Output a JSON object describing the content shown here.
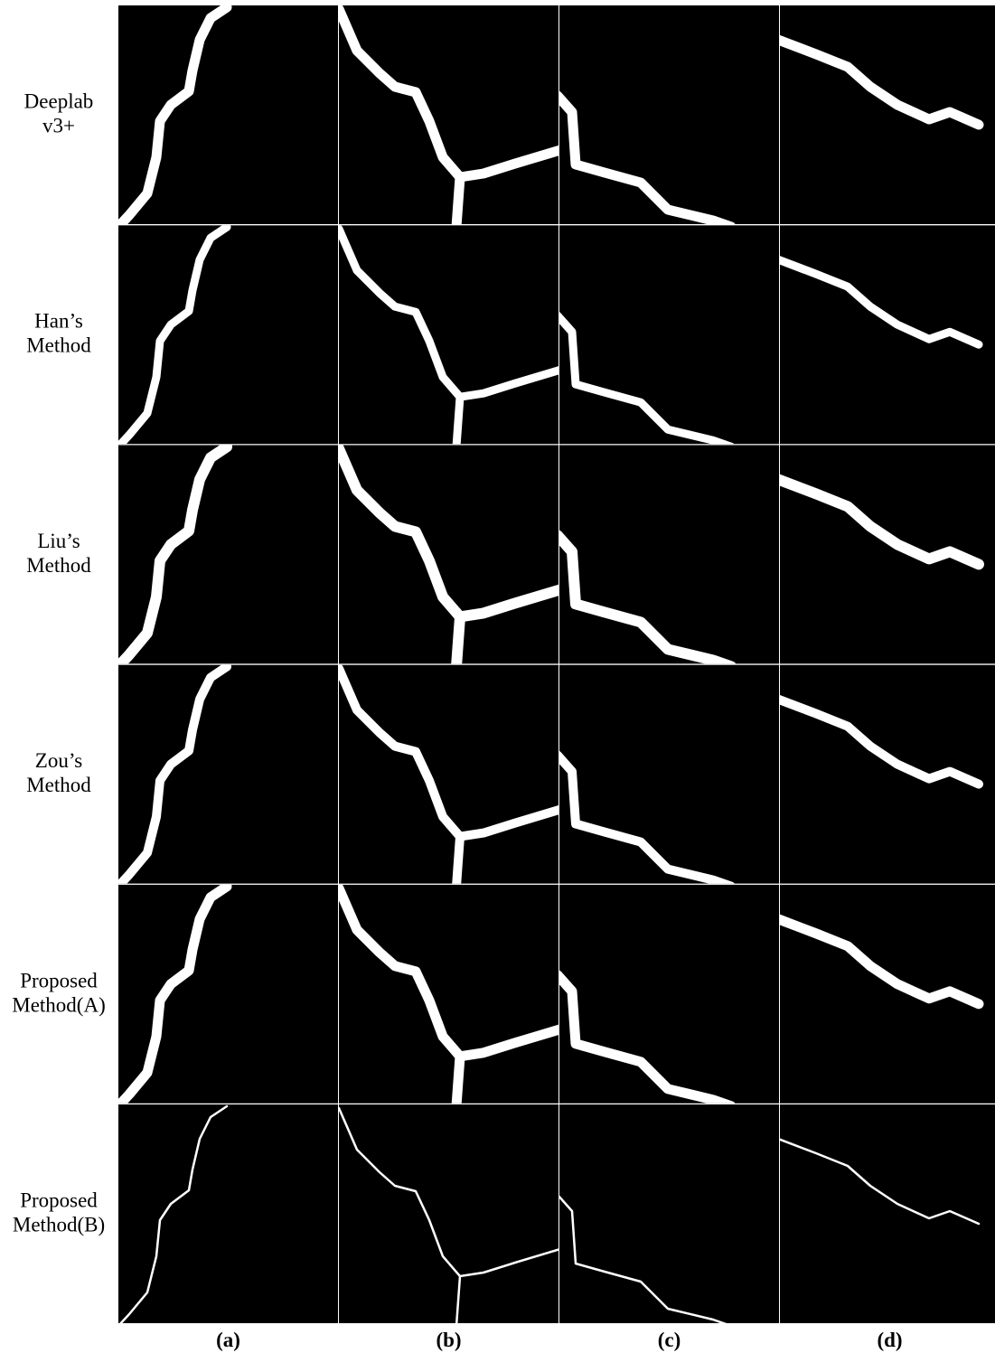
{
  "rows": [
    [
      "Deeplab",
      "v3+"
    ],
    [
      "Han’s",
      "Method"
    ],
    [
      "Liu’s",
      "Method"
    ],
    [
      "Zou’s",
      "Method"
    ],
    [
      "Proposed",
      "Method(A)"
    ],
    [
      "Proposed",
      "Method(B)"
    ]
  ],
  "columns": [
    "(a)",
    "(b)",
    "(c)",
    "(d)"
  ]
}
